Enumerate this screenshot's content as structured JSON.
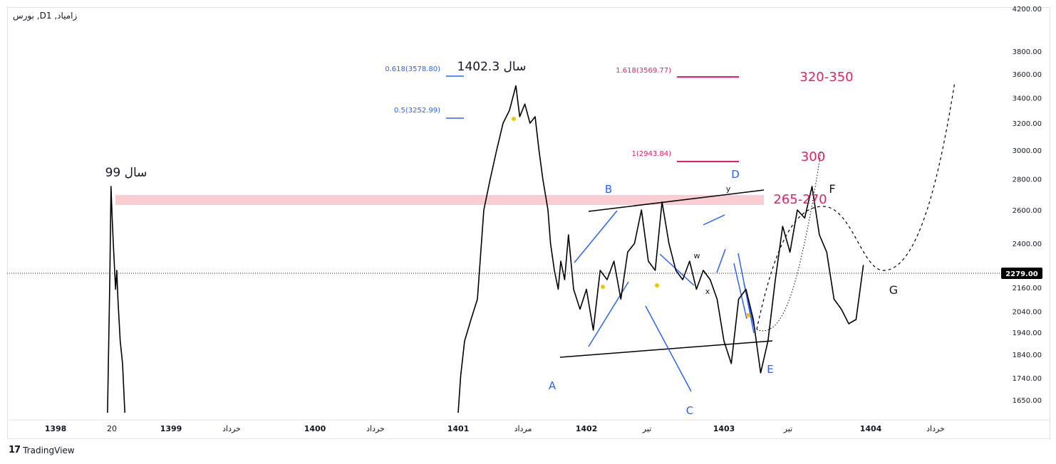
{
  "symbol_title": "بورس ,Dزامیاد, 1",
  "footer_brand": "TradingView",
  "colors": {
    "price": "#000000",
    "wave_blue": "#2962ff",
    "fib_pink": "#e91e63",
    "fib_blue": "#2962ff",
    "zone": "#f8c8cc",
    "axis_text": "#131722",
    "price_tag_bg": "#000000"
  },
  "chart_data": {
    "type": "line",
    "title": "",
    "xlabel": "",
    "ylabel": "",
    "y_scale": "log",
    "ylim": [
      1600,
      4300
    ],
    "y_ticks": [
      "1650.00",
      "1740.00",
      "1840.00",
      "1940.00",
      "2040.00",
      "2160.00",
      "2400.00",
      "2600.00",
      "2800.00",
      "3000.00",
      "3200.00",
      "3400.00",
      "3600.00",
      "3800.00",
      "4200.00"
    ],
    "x_ticks": [
      "1398",
      "20",
      "1399",
      "خرداد",
      "1400",
      "خرداد",
      "1401",
      "مرداد",
      "1402",
      "تیر",
      "1403",
      "تیر",
      "1404",
      "خرداد"
    ],
    "last_price": "2279.00",
    "series": [
      {
        "values": [
          [
            1398.45,
            1600
          ],
          [
            1398.47,
            2200
          ],
          [
            1398.48,
            2750
          ],
          [
            1398.49,
            2550
          ],
          [
            1398.5,
            2400
          ],
          [
            1398.52,
            2150
          ],
          [
            1398.53,
            2250
          ],
          [
            1398.54,
            2100
          ],
          [
            1398.56,
            1900
          ],
          [
            1398.58,
            1800
          ],
          [
            1398.6,
            1600
          ],
          [
            1401.0,
            1600
          ],
          [
            1401.02,
            1750
          ],
          [
            1401.05,
            1900
          ],
          [
            1401.1,
            2000
          ],
          [
            1401.15,
            2100
          ],
          [
            1401.2,
            2600
          ],
          [
            1401.25,
            2800
          ],
          [
            1401.3,
            3000
          ],
          [
            1401.35,
            3200
          ],
          [
            1401.4,
            3300
          ],
          [
            1401.45,
            3500
          ],
          [
            1401.48,
            3250
          ],
          [
            1401.52,
            3350
          ],
          [
            1401.56,
            3200
          ],
          [
            1401.6,
            3250
          ],
          [
            1401.63,
            3000
          ],
          [
            1401.66,
            2800
          ],
          [
            1401.7,
            2600
          ],
          [
            1401.72,
            2400
          ],
          [
            1401.75,
            2250
          ],
          [
            1401.78,
            2150
          ],
          [
            1401.8,
            2300
          ],
          [
            1401.83,
            2200
          ],
          [
            1401.86,
            2450
          ],
          [
            1401.9,
            2150
          ],
          [
            1401.95,
            2050
          ],
          [
            1402.0,
            2150
          ],
          [
            1402.05,
            1950
          ],
          [
            1402.1,
            2250
          ],
          [
            1402.15,
            2200
          ],
          [
            1402.2,
            2300
          ],
          [
            1402.25,
            2100
          ],
          [
            1402.3,
            2350
          ],
          [
            1402.35,
            2400
          ],
          [
            1402.4,
            2600
          ],
          [
            1402.45,
            2300
          ],
          [
            1402.5,
            2250
          ],
          [
            1402.55,
            2650
          ],
          [
            1402.6,
            2400
          ],
          [
            1402.65,
            2250
          ],
          [
            1402.7,
            2200
          ],
          [
            1402.75,
            2300
          ],
          [
            1402.8,
            2150
          ],
          [
            1402.85,
            2250
          ],
          [
            1402.9,
            2200
          ],
          [
            1402.95,
            2100
          ],
          [
            1403.0,
            1900
          ],
          [
            1403.05,
            1800
          ],
          [
            1403.1,
            2100
          ],
          [
            1403.15,
            2150
          ],
          [
            1403.2,
            2000
          ],
          [
            1403.25,
            1760
          ],
          [
            1403.3,
            1900
          ],
          [
            1403.35,
            2200
          ],
          [
            1403.4,
            2500
          ],
          [
            1403.45,
            2350
          ],
          [
            1403.5,
            2600
          ],
          [
            1403.55,
            2550
          ],
          [
            1403.6,
            2750
          ],
          [
            1403.65,
            2450
          ],
          [
            1403.7,
            2350
          ],
          [
            1403.75,
            2100
          ],
          [
            1403.8,
            2050
          ],
          [
            1403.85,
            1980
          ],
          [
            1403.9,
            2000
          ],
          [
            1403.95,
            2279
          ]
        ]
      }
    ]
  },
  "fib_levels": [
    {
      "label": "0.618(3578.80)",
      "color": "#2962ff"
    },
    {
      "label": "0.5(3252.99)",
      "color": "#2962ff"
    },
    {
      "label": "1.618(3569.77)",
      "color": "#e91e63"
    },
    {
      "label": "1(2943.84)",
      "color": "#e91e63"
    }
  ],
  "annotations": {
    "year99": "سال 99",
    "year1402": "سال 1402.3",
    "target_320_350": "320-350",
    "target_300": "300",
    "target_265_270": "265-270",
    "wave_A": "A",
    "wave_B": "B",
    "wave_C": "C",
    "wave_D": "D",
    "wave_E": "E",
    "wave_F": "F",
    "wave_G": "G",
    "wave_w": "w",
    "wave_x": "x",
    "wave_y": "y"
  }
}
